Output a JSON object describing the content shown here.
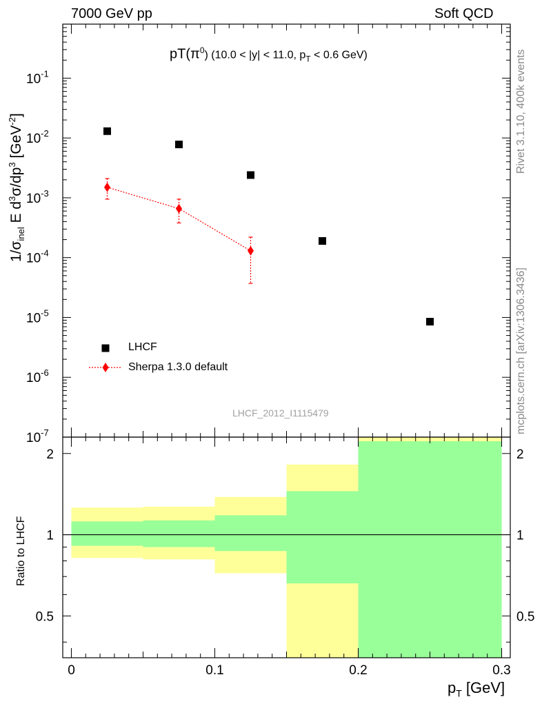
{
  "header": {
    "left": "7000 GeV pp",
    "right": "Soft QCD"
  },
  "side_labels": {
    "rivet": "Rivet 3.1.10,  400k events",
    "mcplots": "mcplots.cern.ch [arXiv:1306.3436]"
  },
  "watermark": "LHCF_2012_I1115479",
  "colors": {
    "data": "#000000",
    "mc": "#ff0000",
    "band_inner": "#99ff99",
    "band_outer": "#ffff99"
  },
  "chart_data": [
    {
      "type": "scatter",
      "title_main": "pT(π",
      "title_sup": "0",
      "title_rest": ") (10.0 < |y| < 11.0, p",
      "title_sub": "T",
      "title_end": " < 0.6 GeV)",
      "yscale": "log",
      "ylim": [
        1e-07,
        0.8
      ],
      "xlim": [
        -0.006,
        0.306
      ],
      "ylabel_parts": {
        "p1": "1/σ",
        "s1": "inel",
        "p2": " E d",
        "u1": "3",
        "p3": "σ/dp",
        "u2": "3",
        "p4": " [GeV",
        "u3": "-2",
        "p5": "]"
      },
      "ytick_labels": [
        {
          "base": "10",
          "exp": "-7",
          "value": 1e-07
        },
        {
          "base": "10",
          "exp": "-6",
          "value": 1e-06
        },
        {
          "base": "10",
          "exp": "-5",
          "value": 1e-05
        },
        {
          "base": "10",
          "exp": "-4",
          "value": 0.0001
        },
        {
          "base": "10",
          "exp": "-3",
          "value": 0.001
        },
        {
          "base": "10",
          "exp": "-2",
          "value": 0.01
        },
        {
          "base": "10",
          "exp": "-1",
          "value": 0.1
        }
      ],
      "series": [
        {
          "name": "LHCF",
          "marker": "square",
          "x": [
            0.025,
            0.075,
            0.125,
            0.175,
            0.25
          ],
          "y": [
            0.013,
            0.0078,
            0.0024,
            0.00019,
            8.5e-06
          ]
        },
        {
          "name": "Sherpa 1.3.0 default",
          "marker": "diamond",
          "line": "dotted",
          "x": [
            0.025,
            0.075,
            0.125
          ],
          "y": [
            0.0015,
            0.00066,
            0.00013
          ],
          "y_low": [
            0.00095,
            0.00038,
            3.7e-05
          ],
          "y_high": [
            0.0021,
            0.00095,
            0.00022
          ]
        }
      ]
    },
    {
      "type": "bar",
      "ylabel": "Ratio to LHCF",
      "xlabel_main": "p",
      "xlabel_sub": "T",
      "xlabel_unit": " [GeV]",
      "xlim": [
        -0.006,
        0.306
      ],
      "ylim": [
        0.35,
        2.3
      ],
      "reference": 1,
      "xtick_labels": [
        {
          "label": "0",
          "value": 0
        },
        {
          "label": "0.1",
          "value": 0.1
        },
        {
          "label": "0.2",
          "value": 0.2
        },
        {
          "label": "0.3",
          "value": 0.3
        }
      ],
      "ytick_labels": [
        {
          "label": "0.5",
          "value": 0.5
        },
        {
          "label": "1",
          "value": 1
        },
        {
          "label": "2",
          "value": 2
        }
      ],
      "bins": [
        {
          "lo": 0.0,
          "hi": 0.05,
          "inner_lo": 0.91,
          "inner_hi": 1.12,
          "outer_lo": 0.82,
          "outer_hi": 1.26
        },
        {
          "lo": 0.05,
          "hi": 0.1,
          "inner_lo": 0.9,
          "inner_hi": 1.13,
          "outer_lo": 0.81,
          "outer_hi": 1.27
        },
        {
          "lo": 0.1,
          "hi": 0.15,
          "inner_lo": 0.87,
          "inner_hi": 1.18,
          "outer_lo": 0.72,
          "outer_hi": 1.38
        },
        {
          "lo": 0.15,
          "hi": 0.2,
          "inner_lo": 0.66,
          "inner_hi": 1.45,
          "outer_lo": 0.35,
          "outer_hi": 1.82
        },
        {
          "lo": 0.2,
          "hi": 0.3,
          "inner_lo": 0.35,
          "inner_hi": 2.22,
          "outer_lo": 0.35,
          "outer_hi": 2.3
        }
      ]
    }
  ]
}
